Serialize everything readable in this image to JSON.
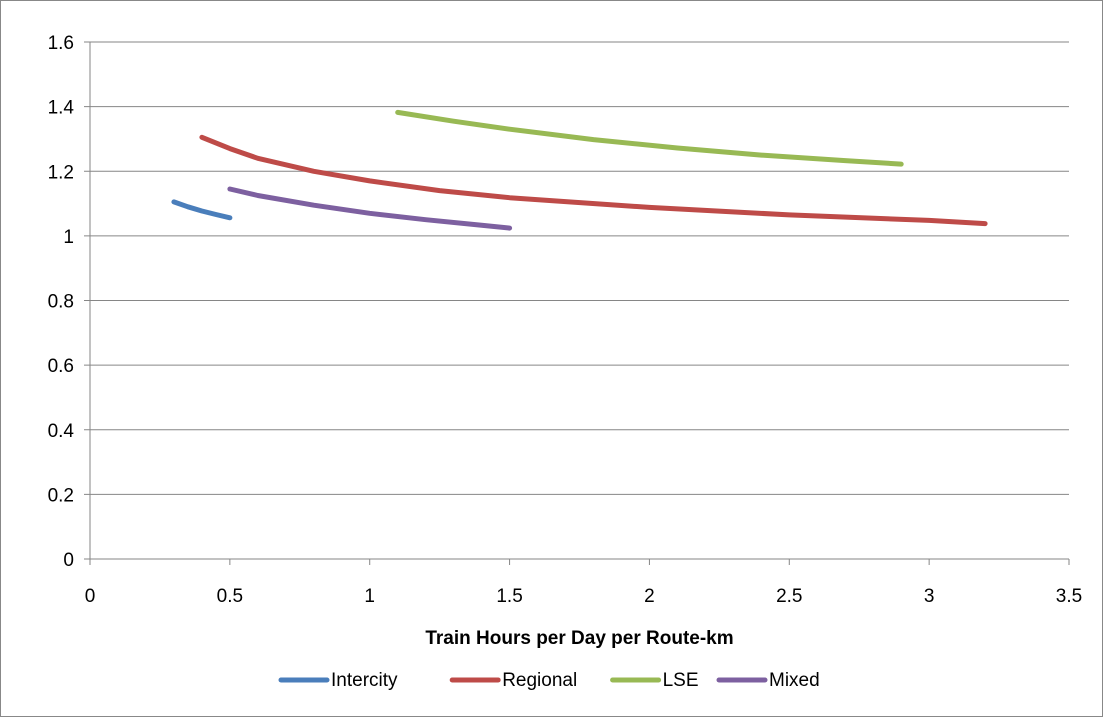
{
  "chart_data": {
    "type": "line",
    "title": "",
    "xlabel": "Train Hours per Day per Route-km",
    "ylabel": "",
    "xlim": [
      0,
      3.5
    ],
    "ylim": [
      0,
      1.6
    ],
    "x_ticks": [
      "0",
      "0.5",
      "1",
      "1.5",
      "2",
      "2.5",
      "3",
      "3.5"
    ],
    "y_ticks": [
      "0",
      "0.2",
      "0.4",
      "0.6",
      "0.8",
      "1",
      "1.2",
      "1.4",
      "1.6"
    ],
    "grid": "horizontal",
    "legend_position": "bottom",
    "series": [
      {
        "name": "Intercity",
        "color": "#4a7ebb",
        "points": [
          [
            0.3,
            1.105
          ],
          [
            0.35,
            1.09
          ],
          [
            0.4,
            1.077
          ],
          [
            0.45,
            1.066
          ],
          [
            0.5,
            1.056
          ]
        ]
      },
      {
        "name": "Regional",
        "color": "#be4b48",
        "points": [
          [
            0.4,
            1.305
          ],
          [
            0.5,
            1.27
          ],
          [
            0.6,
            1.24
          ],
          [
            0.8,
            1.2
          ],
          [
            1.0,
            1.17
          ],
          [
            1.25,
            1.14
          ],
          [
            1.5,
            1.118
          ],
          [
            2.0,
            1.088
          ],
          [
            2.5,
            1.065
          ],
          [
            3.0,
            1.048
          ],
          [
            3.2,
            1.038
          ]
        ]
      },
      {
        "name": "LSE",
        "color": "#98b954",
        "points": [
          [
            1.1,
            1.382
          ],
          [
            1.3,
            1.355
          ],
          [
            1.5,
            1.33
          ],
          [
            1.8,
            1.298
          ],
          [
            2.1,
            1.272
          ],
          [
            2.4,
            1.25
          ],
          [
            2.7,
            1.233
          ],
          [
            2.9,
            1.222
          ]
        ]
      },
      {
        "name": "Mixed",
        "color": "#7d60a0",
        "points": [
          [
            0.5,
            1.145
          ],
          [
            0.6,
            1.125
          ],
          [
            0.8,
            1.095
          ],
          [
            1.0,
            1.07
          ],
          [
            1.2,
            1.05
          ],
          [
            1.4,
            1.033
          ],
          [
            1.5,
            1.024
          ]
        ]
      }
    ]
  }
}
